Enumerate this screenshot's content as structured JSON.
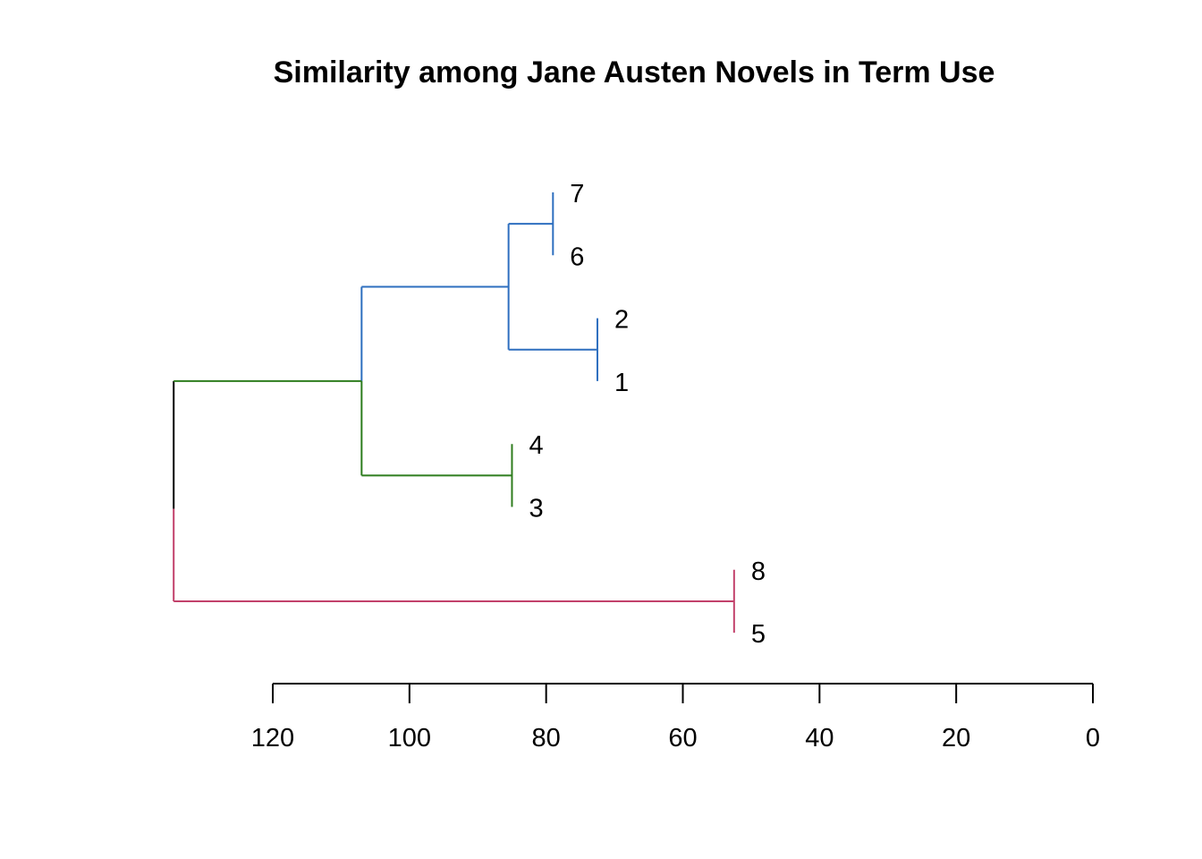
{
  "chart_data": {
    "type": "dendrogram",
    "title": "Similarity among Jane Austen Novels in Term Use",
    "orientation": "horizontal",
    "xlim": [
      120,
      0
    ],
    "x_ticks": [
      120,
      100,
      80,
      60,
      40,
      20,
      0
    ],
    "x_tick_labels": [
      "120",
      "100",
      "80",
      "60",
      "40",
      "20",
      "0"
    ],
    "xlabel": "",
    "ylabel": "",
    "leaf_order": [
      "7",
      "6",
      "2",
      "1",
      "4",
      "3",
      "8",
      "5"
    ],
    "merges": [
      {
        "left": "7",
        "right": "6",
        "height": 79,
        "color": "#2e6fbf"
      },
      {
        "left": "2",
        "right": "1",
        "height": 72.5,
        "color": "#2e6fbf"
      },
      {
        "left": "[7,6]",
        "right": "[2,1]",
        "height": 85.5,
        "color": "#2e6fbf"
      },
      {
        "left": "4",
        "right": "3",
        "height": 85,
        "color": "#2e7d1e"
      },
      {
        "left": "[7,6,2,1]",
        "right": "[4,3]",
        "height": 107,
        "color": "#2e7d1e"
      },
      {
        "left": "8",
        "right": "5",
        "height": 52.5,
        "color": "#c2416b"
      },
      {
        "left": "[7,6,2,1,4,3]",
        "right": "[8,5]",
        "height": 134.5,
        "color": "#000000"
      }
    ],
    "cluster_colors": {
      "blue": "#2e6fbf",
      "green": "#2e7d1e",
      "pink": "#c2416b",
      "root": "#000000"
    }
  }
}
